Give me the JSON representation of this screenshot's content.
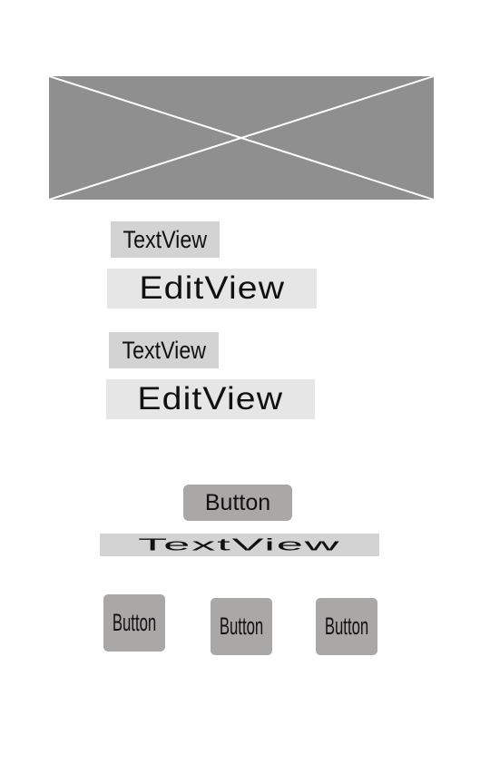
{
  "image_placeholder": {
    "icon": "image-placeholder-cross-icon",
    "fill": "#8f8f8f",
    "line_color": "#ffffff"
  },
  "form": {
    "label_1": "TextView",
    "input_1": "EditView",
    "label_2": "TextView",
    "input_2": "EditView"
  },
  "main_button": {
    "label": "Button"
  },
  "caption": "TextView",
  "bottom_buttons": [
    {
      "label": "Button"
    },
    {
      "label": "Button"
    },
    {
      "label": "Button"
    }
  ],
  "colors": {
    "textview_bg": "#d3d3d3",
    "editview_bg": "#e6e6e6",
    "button_bg": "#aaa7a7"
  }
}
